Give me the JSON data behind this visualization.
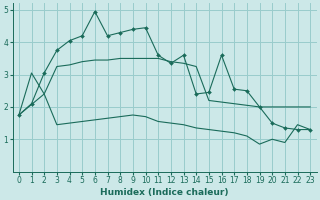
{
  "xlabel": "Humidex (Indice chaleur)",
  "background_color": "#cce8e8",
  "grid_color": "#99cccc",
  "line_color": "#1a6b5a",
  "xlim": [
    -0.5,
    23.5
  ],
  "ylim": [
    0,
    5.2
  ],
  "xticks": [
    0,
    1,
    2,
    3,
    4,
    5,
    6,
    7,
    8,
    9,
    10,
    11,
    12,
    13,
    14,
    15,
    16,
    17,
    18,
    19,
    20,
    21,
    22,
    23
  ],
  "yticks": [
    1,
    2,
    3,
    4,
    5
  ],
  "line1_x": [
    0,
    1,
    2,
    3,
    4,
    5,
    6,
    7,
    8,
    9,
    10,
    11,
    12,
    13,
    14,
    15,
    16,
    17,
    18,
    19,
    20,
    21,
    22,
    23
  ],
  "line1_y": [
    1.75,
    2.1,
    3.05,
    3.75,
    4.05,
    4.2,
    4.95,
    4.2,
    4.3,
    4.4,
    4.45,
    3.6,
    3.35,
    3.6,
    2.4,
    2.45,
    3.6,
    2.55,
    2.5,
    2.0,
    1.5,
    1.35,
    1.3,
    1.3
  ],
  "line2_x": [
    0,
    1,
    2,
    3,
    4,
    5,
    6,
    7,
    8,
    9,
    10,
    11,
    12,
    13,
    14,
    15,
    16,
    17,
    18,
    19,
    20,
    21,
    22,
    23
  ],
  "line2_y": [
    1.75,
    3.05,
    2.4,
    3.25,
    3.3,
    3.4,
    3.45,
    3.45,
    3.5,
    3.5,
    3.5,
    3.5,
    3.4,
    3.35,
    3.25,
    2.2,
    2.15,
    2.1,
    2.05,
    2.0,
    2.0,
    2.0,
    2.0,
    2.0
  ],
  "line3_x": [
    0,
    2,
    3,
    4,
    5,
    6,
    7,
    8,
    9,
    10,
    11,
    12,
    13,
    14,
    15,
    16,
    17,
    18,
    19,
    20,
    21,
    22,
    23
  ],
  "line3_y": [
    1.75,
    2.4,
    1.45,
    1.5,
    1.55,
    1.6,
    1.65,
    1.7,
    1.75,
    1.7,
    1.55,
    1.5,
    1.45,
    1.35,
    1.3,
    1.25,
    1.2,
    1.1,
    0.85,
    1.0,
    0.9,
    1.45,
    1.3
  ]
}
